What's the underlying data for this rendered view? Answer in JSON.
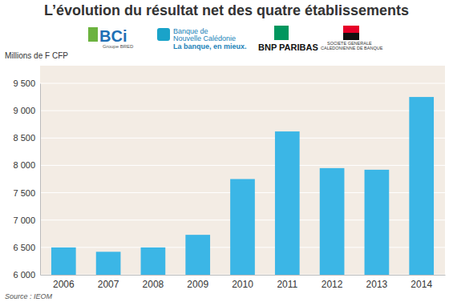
{
  "chart_data": {
    "type": "bar",
    "title": "L’évolution du résultat net des quatre établissements",
    "y_label": "Millions de F CFP",
    "source": "Source : IEOM",
    "annotations": [
      "BCi",
      "Groupe BRED",
      "Banque de",
      "Nouvelle Calédonie",
      "La banque, en mieux.",
      "BNP PARIBAS",
      "SOCIETE GENERALE",
      "CALEDONIENNE DE BANQUE"
    ],
    "categories": [
      "2006",
      "2007",
      "2008",
      "2009",
      "2010",
      "2011",
      "2012",
      "2013",
      "2014"
    ],
    "values": [
      6500,
      6420,
      6500,
      6730,
      7750,
      8620,
      7950,
      7920,
      9250
    ],
    "color": "#3bb6e6",
    "ylim": [
      6000,
      9500
    ],
    "yticks": [
      {
        "value": 6000,
        "label": "6 000"
      },
      {
        "value": 6500,
        "label": "6 500"
      },
      {
        "value": 7000,
        "label": "7 000"
      },
      {
        "value": 7500,
        "label": "7 500"
      },
      {
        "value": 8000,
        "label": "8 000"
      },
      {
        "value": 8500,
        "label": "8 500"
      },
      {
        "value": 9000,
        "label": "9 000"
      },
      {
        "value": 9500,
        "label": "9 500"
      }
    ],
    "grid": true
  }
}
